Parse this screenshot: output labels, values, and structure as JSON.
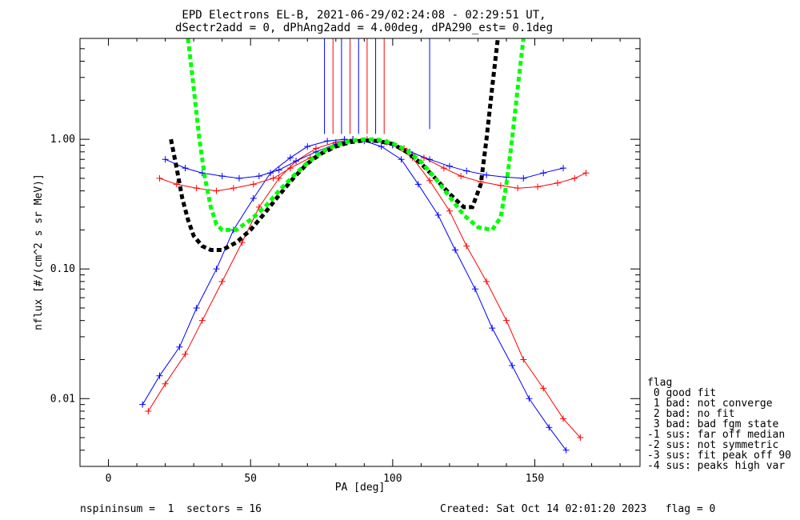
{
  "title_line1": "EPD Electrons EL-B, 2021-06-29/02:24:08 - 02:29:51 UT,",
  "title_line2": "dSectr2add = 0, dPhAng2add = 4.00deg, dPA290_est=   0.1deg",
  "footer": {
    "left": "nspininsum =  1  sectors = 16",
    "right": "Created: Sat Oct 14 02:01:20 2023   flag = 0"
  },
  "legend": {
    "title": "flag",
    "items": [
      " 0 good fit",
      " 1 bad: not converge",
      " 2 bad: no fit",
      " 3 bad: bad fgm state",
      "-1 sus: far off median",
      "-2 sus: not symmetric",
      "-3 sus: fit peak off 90",
      "-4 sus: peaks high var"
    ]
  },
  "colors": {
    "series_a": "#ff0000",
    "series_b": "#0000ff",
    "fit_green": "#00ff00",
    "fit_black": "#000000"
  },
  "chart_data": {
    "type": "line",
    "xlabel": "PA [deg]",
    "ylabel": "nflux [#/(cm^2 s sr MeV)]",
    "xlim": [
      -10,
      187
    ],
    "ylim": [
      0.003,
      6.0
    ],
    "yscale": "log",
    "xticks": [
      0,
      50,
      100,
      150
    ],
    "xtick_labels": [
      "0",
      "50",
      "100",
      "150"
    ],
    "yticks": [
      0.01,
      0.1,
      1.0
    ],
    "ytick_labels": [
      "0.01",
      "0.10",
      "1.00"
    ],
    "series": [
      {
        "color": "red",
        "x": [
          14,
          20,
          27,
          33,
          40,
          47,
          53,
          60,
          66,
          73,
          80,
          86,
          93,
          100,
          107,
          113,
          120,
          126,
          133,
          140,
          146,
          153,
          160,
          166
        ],
        "y": [
          0.008,
          0.013,
          0.022,
          0.04,
          0.08,
          0.16,
          0.3,
          0.5,
          0.68,
          0.85,
          0.95,
          1.0,
          0.98,
          0.9,
          0.72,
          0.48,
          0.28,
          0.15,
          0.08,
          0.04,
          0.02,
          0.012,
          0.007,
          0.005
        ]
      },
      {
        "color": "blue",
        "x": [
          12,
          18,
          25,
          31,
          38,
          44,
          51,
          57,
          64,
          70,
          77,
          83,
          90,
          96,
          103,
          109,
          116,
          122,
          129,
          135,
          142,
          148,
          155,
          161
        ],
        "y": [
          0.009,
          0.015,
          0.025,
          0.05,
          0.1,
          0.2,
          0.35,
          0.55,
          0.72,
          0.88,
          0.97,
          1.0,
          0.97,
          0.88,
          0.7,
          0.45,
          0.26,
          0.14,
          0.07,
          0.035,
          0.018,
          0.01,
          0.006,
          0.004
        ]
      },
      {
        "color": "red",
        "x": [
          18,
          24,
          31,
          38,
          44,
          51,
          58,
          64,
          71,
          78,
          84,
          91,
          98,
          104,
          111,
          118,
          124,
          131,
          138,
          144,
          151,
          158,
          164,
          168
        ],
        "y": [
          0.5,
          0.45,
          0.42,
          0.4,
          0.42,
          0.45,
          0.5,
          0.6,
          0.72,
          0.85,
          0.95,
          1.0,
          0.95,
          0.85,
          0.72,
          0.6,
          0.52,
          0.47,
          0.44,
          0.42,
          0.43,
          0.46,
          0.5,
          0.55
        ]
      },
      {
        "color": "blue",
        "x": [
          20,
          27,
          33,
          40,
          46,
          53,
          60,
          66,
          73,
          80,
          86,
          93,
          100,
          106,
          113,
          120,
          126,
          133,
          140,
          146,
          153,
          160
        ],
        "y": [
          0.7,
          0.6,
          0.55,
          0.52,
          0.5,
          0.52,
          0.58,
          0.68,
          0.8,
          0.92,
          1.0,
          0.98,
          0.9,
          0.8,
          0.7,
          0.62,
          0.57,
          0.53,
          0.51,
          0.5,
          0.55,
          0.6
        ]
      }
    ],
    "fit_curves": [
      {
        "color": "black",
        "style": "dashed",
        "x": [
          22,
          24,
          26,
          28,
          30,
          33,
          36,
          40,
          45,
          50,
          55,
          60,
          65,
          70,
          75,
          80,
          85,
          90,
          95,
          100,
          105,
          110,
          115,
          120,
          125,
          128,
          131,
          133,
          135,
          137
        ],
        "y": [
          1.0,
          0.6,
          0.35,
          0.24,
          0.18,
          0.15,
          0.14,
          0.14,
          0.16,
          0.2,
          0.27,
          0.37,
          0.5,
          0.65,
          0.78,
          0.88,
          0.95,
          0.98,
          0.97,
          0.92,
          0.8,
          0.65,
          0.5,
          0.38,
          0.3,
          0.3,
          0.45,
          1.0,
          2.5,
          6.0
        ]
      },
      {
        "color": "green",
        "style": "dashed",
        "x": [
          28,
          30,
          32,
          34,
          36,
          38,
          40,
          45,
          50,
          55,
          60,
          65,
          70,
          75,
          80,
          85,
          90,
          95,
          100,
          105,
          110,
          115,
          120,
          125,
          130,
          135,
          138,
          140,
          142,
          144,
          146
        ],
        "y": [
          6.0,
          2.5,
          1.0,
          0.5,
          0.3,
          0.22,
          0.2,
          0.2,
          0.24,
          0.3,
          0.4,
          0.52,
          0.66,
          0.8,
          0.9,
          0.97,
          1.0,
          0.99,
          0.93,
          0.82,
          0.67,
          0.5,
          0.36,
          0.26,
          0.21,
          0.2,
          0.25,
          0.45,
          1.0,
          2.5,
          6.0
        ]
      }
    ],
    "spike_x": [
      76,
      79,
      82,
      85,
      88,
      91,
      94,
      97,
      113
    ]
  }
}
